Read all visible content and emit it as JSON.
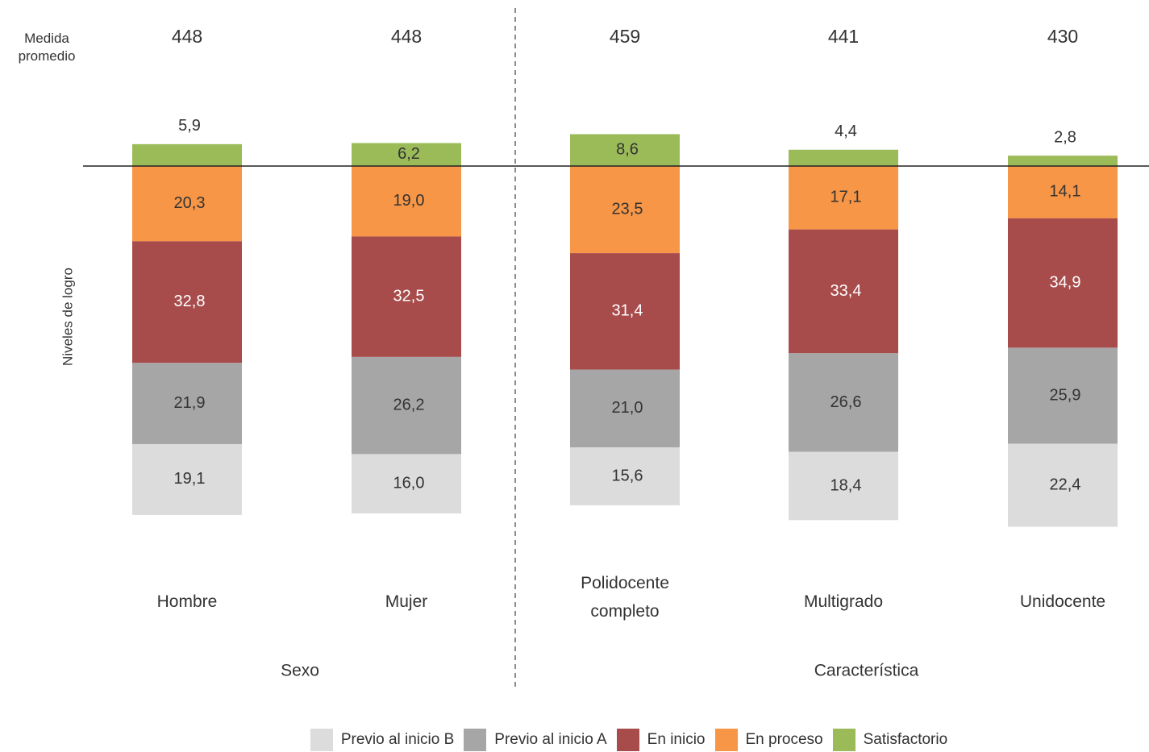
{
  "chart_data": {
    "type": "bar",
    "stacked": true,
    "y_label": "Niveles de logro",
    "mean_label": "Medida promedio",
    "categories": [
      "Hombre",
      "Mujer",
      "Polidocente completo",
      "Multigrado",
      "Unidocente"
    ],
    "means": [
      448,
      448,
      459,
      441,
      430
    ],
    "groups": [
      {
        "name": "Sexo",
        "members": [
          "Hombre",
          "Mujer"
        ]
      },
      {
        "name": "Característica",
        "members": [
          "Polidocente completo",
          "Multigrado",
          "Unidocente"
        ]
      }
    ],
    "series": [
      {
        "name": "Previo al inicio B",
        "color": "#dcdcdc",
        "values": [
          19.1,
          16.0,
          15.6,
          18.4,
          22.4
        ],
        "value_labels": [
          "19,1",
          "16,0",
          "15,6",
          "18,4",
          "22,4"
        ]
      },
      {
        "name": "Previo al inicio A",
        "color": "#a6a6a6",
        "values": [
          21.9,
          26.2,
          21.0,
          26.6,
          25.9
        ],
        "value_labels": [
          "21,9",
          "26,2",
          "21,0",
          "26,6",
          "25,9"
        ]
      },
      {
        "name": "En inicio",
        "color": "#a84b4b",
        "values": [
          32.8,
          32.5,
          31.4,
          33.4,
          34.9
        ],
        "value_labels": [
          "32,8",
          "32,5",
          "31,4",
          "33,4",
          "34,9"
        ]
      },
      {
        "name": "En proceso",
        "color": "#f79646",
        "values": [
          20.3,
          19.0,
          23.5,
          17.1,
          14.1
        ],
        "value_labels": [
          "20,3",
          "19,0",
          "23,5",
          "17,1",
          "14,1"
        ]
      },
      {
        "name": "Satisfactorio",
        "color": "#9bbb59",
        "above_line": true,
        "values": [
          5.9,
          6.2,
          8.6,
          4.4,
          2.8
        ],
        "value_labels": [
          "5,9",
          "6,2",
          "8,6",
          "4,4",
          "2,8"
        ]
      }
    ]
  }
}
